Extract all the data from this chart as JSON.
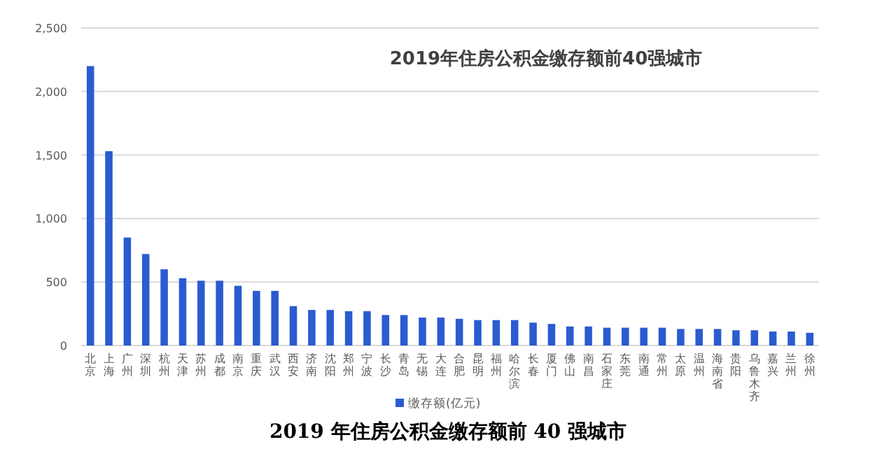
{
  "chart_data": {
    "type": "bar",
    "title": "2019年住房公积金缴存额前40强城市",
    "categories": [
      "北京",
      "上海",
      "广州",
      "深圳",
      "杭州",
      "天津",
      "苏州",
      "成都",
      "南京",
      "重庆",
      "武汉",
      "西安",
      "济南",
      "沈阳",
      "郑州",
      "宁波",
      "长沙",
      "青岛",
      "无锡",
      "大连",
      "合肥",
      "昆明",
      "福州",
      "哈尔滨",
      "长春",
      "厦门",
      "佛山",
      "南昌",
      "石家庄",
      "东莞",
      "南通",
      "常州",
      "太原",
      "温州",
      "海南省",
      "贵阳",
      "乌鲁木齐",
      "嘉兴",
      "兰州",
      "徐州"
    ],
    "series": [
      {
        "name": "缴存额(亿元)",
        "color": "#2a5bd0",
        "values": [
          2200,
          1530,
          850,
          720,
          600,
          530,
          510,
          510,
          470,
          430,
          430,
          310,
          280,
          280,
          270,
          270,
          240,
          240,
          220,
          220,
          210,
          200,
          200,
          200,
          180,
          170,
          150,
          150,
          140,
          140,
          140,
          140,
          130,
          130,
          130,
          120,
          120,
          110,
          110,
          100
        ]
      }
    ],
    "ylim": [
      0,
      2500
    ],
    "yticks": [
      {
        "value": 0,
        "label": "0"
      },
      {
        "value": 500,
        "label": "500"
      },
      {
        "value": 1000,
        "label": "1,000"
      },
      {
        "value": 1500,
        "label": "1,500"
      },
      {
        "value": 2000,
        "label": "2,000"
      },
      {
        "value": 2500,
        "label": "2,500"
      }
    ],
    "grid": "y",
    "legend": "bottom",
    "annotations": [
      "2019 年住房公积金缴存额前 40 强城市"
    ]
  }
}
